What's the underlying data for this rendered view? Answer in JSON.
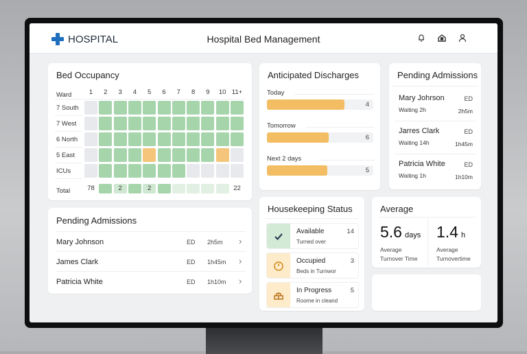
{
  "header": {
    "brand": "HOSPITAL",
    "title": "Hospital Bed Management",
    "icons": [
      "bell-icon",
      "home-icon",
      "user-icon"
    ]
  },
  "colors": {
    "brand": "#1f6fbf",
    "occupied": "#a6d4ab",
    "alert": "#f4c57a",
    "empty": "#e7e9ec",
    "bar": "#f2bd63"
  },
  "occupancy": {
    "title": "Bed Occupancy",
    "ward_header": "Ward",
    "columns": [
      "1",
      "2",
      "3",
      "4",
      "5",
      "6",
      "7",
      "8",
      "9",
      "10",
      "11+"
    ],
    "rows": [
      {
        "ward": "7 South",
        "cells": [
          "e",
          "g",
          "g",
          "g",
          "g",
          "g",
          "g",
          "g",
          "g",
          "g",
          "g"
        ]
      },
      {
        "ward": "7 West",
        "cells": [
          "e",
          "g",
          "g",
          "g",
          "g",
          "g",
          "g",
          "g",
          "g",
          "g",
          "g"
        ]
      },
      {
        "ward": "6 North",
        "cells": [
          "e",
          "g",
          "g",
          "g",
          "g",
          "g",
          "g",
          "g",
          "g",
          "g",
          "g"
        ]
      },
      {
        "ward": "5 East",
        "cells": [
          "e",
          "g",
          "g",
          "g",
          "o",
          "g",
          "g",
          "g",
          "g",
          "o",
          "e"
        ]
      },
      {
        "ward": "ICUs",
        "cells": [
          "e",
          "g",
          "g",
          "g",
          "g",
          "g",
          "g",
          "e",
          "e",
          "e",
          "e"
        ]
      }
    ],
    "total": {
      "label": "Total",
      "cells": [
        {
          "s": "n",
          "t": "78"
        },
        {
          "s": "g",
          "t": ""
        },
        {
          "s": "l",
          "t": "2"
        },
        {
          "s": "g",
          "t": ""
        },
        {
          "s": "l",
          "t": "2"
        },
        {
          "s": "g",
          "t": ""
        },
        {
          "s": "p",
          "t": ""
        },
        {
          "s": "p",
          "t": ""
        },
        {
          "s": "p",
          "t": ""
        },
        {
          "s": "p",
          "t": ""
        },
        {
          "s": "n",
          "t": "22"
        }
      ]
    }
  },
  "discharges": {
    "title": "Anticipated Discharges",
    "items": [
      {
        "label": "Today",
        "value": "4",
        "fill_pct": 73
      },
      {
        "label": "Tomorrow",
        "value": "6",
        "fill_pct": 58
      },
      {
        "label": "Next 2 days",
        "value": "5",
        "fill_pct": 57
      }
    ]
  },
  "pending_side": {
    "title": "Pending Admissions",
    "items": [
      {
        "name": "Mary Johrson",
        "source": "ED",
        "wait": "Waiting 2h",
        "time": "2h5m"
      },
      {
        "name": "Jarres Clark",
        "source": "ED",
        "wait": "Waiting 14h",
        "time": "1h45m"
      },
      {
        "name": "Patricia White",
        "source": "ED",
        "wait": "Waiting 1h",
        "time": "1h10m"
      }
    ]
  },
  "pending_main": {
    "title": "Pending Admissions",
    "items": [
      {
        "name": "Mary Johnson",
        "source": "ED",
        "time": "2h5m"
      },
      {
        "name": "James Clark",
        "source": "ED",
        "time": "1h45m"
      },
      {
        "name": "Patricia White",
        "source": "ED",
        "time": "1h10m"
      }
    ]
  },
  "housekeeping": {
    "title": "Housekeeping Status",
    "items": [
      {
        "title": "Available",
        "sub": "Turned over",
        "count": "14",
        "icon": "check-icon"
      },
      {
        "title": "Occupied",
        "sub": "Beds in Turnwor",
        "count": "3",
        "icon": "clock-icon"
      },
      {
        "title": "In Progress",
        "sub": "Roome in cleand",
        "count": "5",
        "icon": "cleaning-icon"
      }
    ]
  },
  "average": {
    "title": "Average",
    "metrics": [
      {
        "value": "5.6",
        "unit": "days",
        "label1": "Average",
        "label2": "Turnover Time"
      },
      {
        "value": "1.4",
        "unit": "h",
        "label1": "Average",
        "label2": "Turnovertime"
      }
    ]
  }
}
